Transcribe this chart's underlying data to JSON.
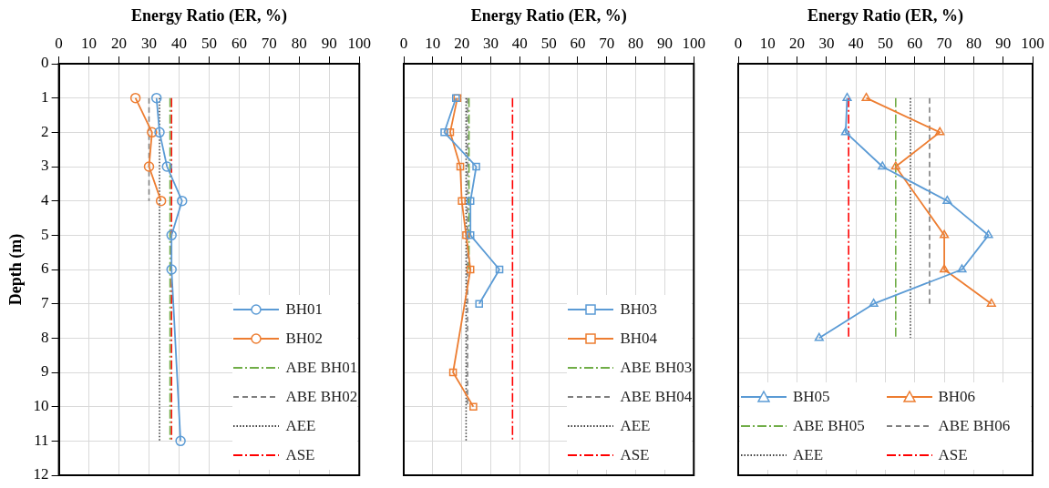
{
  "chart_data": [
    {
      "type": "line",
      "xlabel": "Energy Ratio (ER, %)",
      "ylabel": "Depth (m)",
      "xlim": [
        0,
        100
      ],
      "xticks": [
        0,
        10,
        20,
        30,
        40,
        50,
        60,
        70,
        80,
        90,
        100
      ],
      "ylim": [
        12,
        0
      ],
      "yticks": [
        0,
        1,
        2,
        3,
        4,
        5,
        6,
        7,
        8,
        9,
        10,
        11,
        12
      ],
      "grid": true,
      "legend": "bottom right",
      "series": [
        {
          "name": "BH01",
          "color": "#5b9bd5",
          "marker": "circle",
          "line_style": "solid",
          "x": [
            32.5,
            33.5,
            36,
            41,
            37.5,
            37.5,
            40.5
          ],
          "values": [
            1,
            2,
            3,
            4,
            5,
            6,
            11
          ]
        },
        {
          "name": "BH02",
          "color": "#ed7d31",
          "marker": "circle",
          "line_style": "solid",
          "x": [
            25.5,
            31,
            30,
            34
          ],
          "values": [
            1,
            2,
            3,
            4
          ]
        },
        {
          "name": "ABE BH01",
          "color": "#70ad47",
          "marker": "none",
          "line_style": "dashdot",
          "x": [
            37,
            37
          ],
          "values": [
            1,
            11
          ]
        },
        {
          "name": "ABE BH02",
          "color": "#7f7f7f",
          "marker": "none",
          "line_style": "dashed",
          "x": [
            30,
            30
          ],
          "values": [
            1,
            4
          ]
        },
        {
          "name": "AEE",
          "color": "#404040",
          "marker": "none",
          "line_style": "dotted",
          "x": [
            33.5,
            33.5
          ],
          "values": [
            1,
            11
          ]
        },
        {
          "name": "ASE",
          "color": "#ff0000",
          "marker": "none",
          "line_style": "dashdot",
          "x": [
            37.5,
            37.5
          ],
          "values": [
            1,
            11
          ]
        }
      ]
    },
    {
      "type": "line",
      "xlabel": "Energy Ratio (ER, %)",
      "xlim": [
        0,
        100
      ],
      "xticks": [
        0,
        10,
        20,
        30,
        40,
        50,
        60,
        70,
        80,
        90,
        100
      ],
      "ylim": [
        12,
        0
      ],
      "yticks": [
        0,
        1,
        2,
        3,
        4,
        5,
        6,
        7,
        8,
        9,
        10,
        11,
        12
      ],
      "tick_labels": "x",
      "grid": true,
      "legend": "bottom right",
      "series": [
        {
          "name": "BH03",
          "color": "#5b9bd5",
          "marker": "square",
          "line_style": "solid",
          "x": [
            18,
            14,
            25,
            23,
            23,
            33,
            26
          ],
          "values": [
            1,
            2,
            3,
            4,
            5,
            6,
            7
          ]
        },
        {
          "name": "BH04",
          "color": "#ed7d31",
          "marker": "square",
          "line_style": "solid",
          "x": [
            18.5,
            16,
            19.5,
            20,
            21.5,
            23,
            17,
            24
          ],
          "values": [
            1,
            2,
            3,
            4,
            5,
            6,
            9,
            10
          ]
        },
        {
          "name": "ABE BH03",
          "color": "#70ad47",
          "marker": "none",
          "line_style": "dashdot",
          "x": [
            22.5,
            22.5
          ],
          "values": [
            1,
            6
          ]
        },
        {
          "name": "ABE BH04",
          "color": "#7f7f7f",
          "marker": "none",
          "line_style": "dashed",
          "x": [
            22,
            22
          ],
          "values": [
            1,
            10
          ]
        },
        {
          "name": "AEE",
          "color": "#404040",
          "marker": "none",
          "line_style": "dotted",
          "x": [
            21.5,
            21.5
          ],
          "values": [
            1,
            11
          ]
        },
        {
          "name": "ASE",
          "color": "#ff0000",
          "marker": "none",
          "line_style": "dashdot",
          "x": [
            37.5,
            37.5
          ],
          "values": [
            1,
            11
          ]
        }
      ]
    },
    {
      "type": "line",
      "xlabel": "Energy Ratio (ER, %)",
      "xlim": [
        0,
        100
      ],
      "xticks": [
        0,
        10,
        20,
        30,
        40,
        50,
        60,
        70,
        80,
        90,
        100
      ],
      "ylim": [
        12,
        0
      ],
      "yticks": [
        0,
        1,
        2,
        3,
        4,
        5,
        6,
        7,
        8,
        9,
        10,
        11,
        12
      ],
      "tick_labels": "x",
      "grid": true,
      "legend": "bottom",
      "series": [
        {
          "name": "BH05",
          "color": "#5b9bd5",
          "marker": "triangle",
          "line_style": "solid",
          "x": [
            37,
            36.5,
            49,
            71,
            85,
            76,
            46,
            27.5
          ],
          "values": [
            1,
            2,
            3,
            4,
            5,
            6,
            7,
            8
          ]
        },
        {
          "name": "BH06",
          "color": "#ed7d31",
          "marker": "triangle",
          "line_style": "solid",
          "x": [
            43.5,
            68.5,
            53.5,
            70,
            70,
            86
          ],
          "values": [
            1,
            2,
            3,
            5,
            6,
            7
          ]
        },
        {
          "name": "ABE BH05",
          "color": "#70ad47",
          "marker": "none",
          "line_style": "dashdot",
          "x": [
            53.5,
            53.5
          ],
          "values": [
            1,
            8
          ]
        },
        {
          "name": "ABE BH06",
          "color": "#7f7f7f",
          "marker": "none",
          "line_style": "dashed",
          "x": [
            65,
            65
          ],
          "values": [
            1,
            7
          ]
        },
        {
          "name": "AEE",
          "color": "#404040",
          "marker": "none",
          "line_style": "dotted",
          "x": [
            58.5,
            58.5
          ],
          "values": [
            1,
            8
          ]
        },
        {
          "name": "ASE",
          "color": "#ff0000",
          "marker": "none",
          "line_style": "dashdot",
          "x": [
            37.5,
            37.5
          ],
          "values": [
            1,
            8
          ]
        }
      ]
    }
  ]
}
